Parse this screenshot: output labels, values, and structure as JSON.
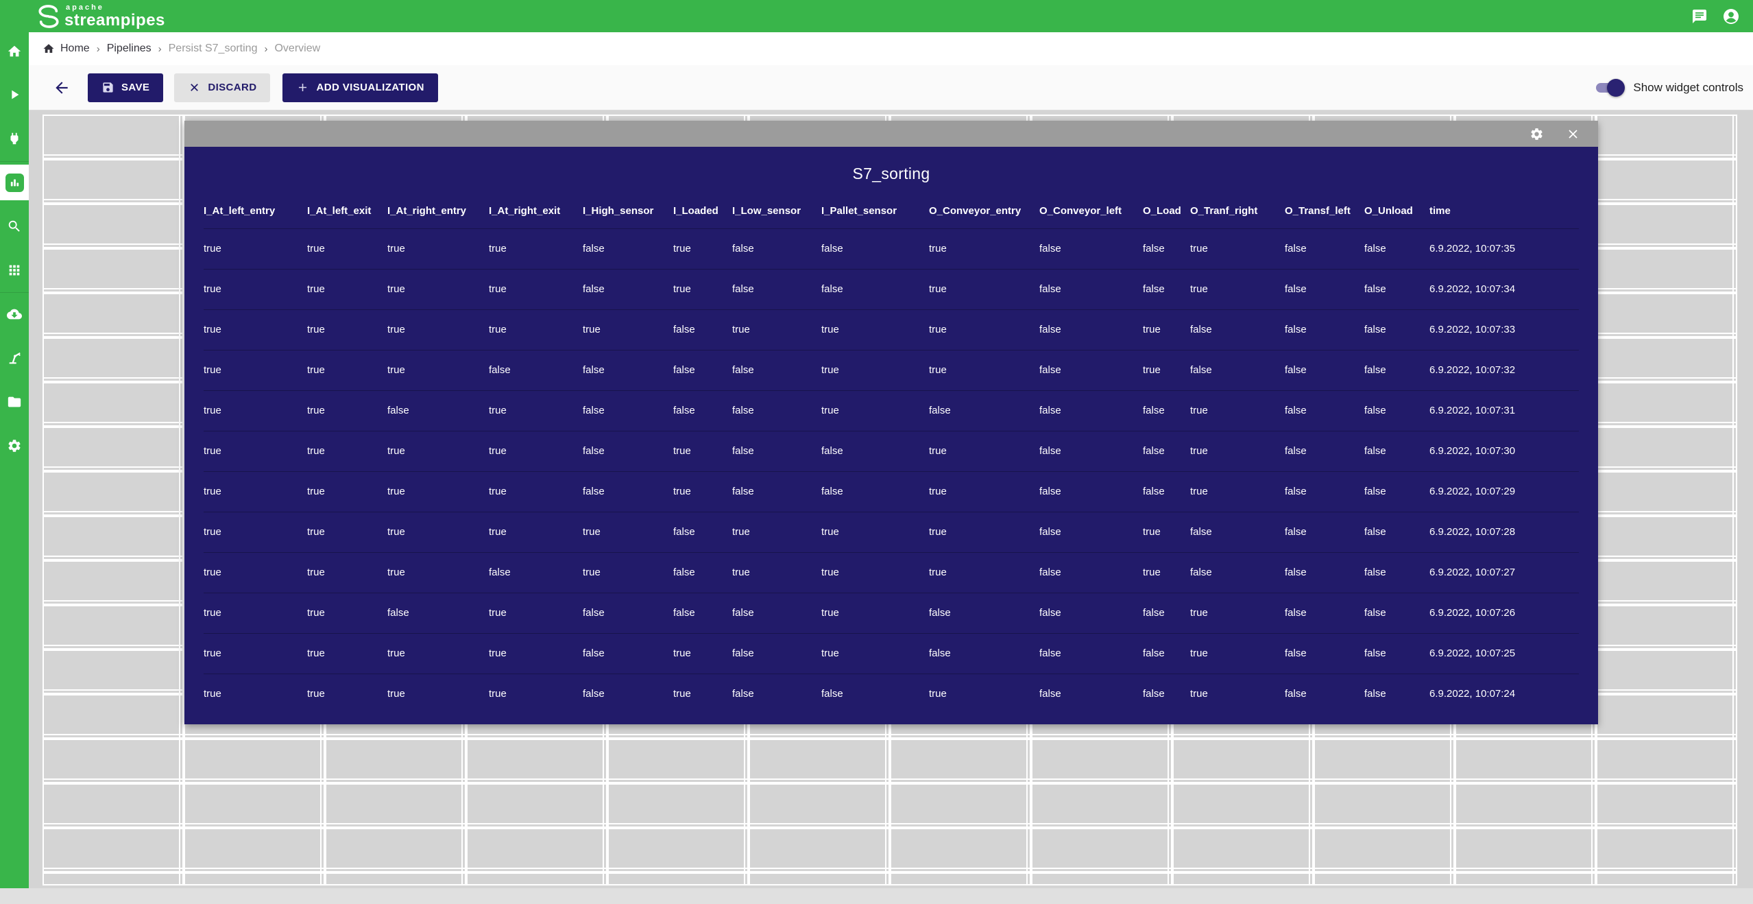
{
  "topbar": {
    "logo_apache": "apache",
    "logo_main": "streampipes",
    "icons": [
      "messages-icon",
      "account-icon"
    ]
  },
  "breadcrumb": {
    "separator": "›",
    "items": [
      {
        "label": "Home"
      },
      {
        "label": "Pipelines"
      },
      {
        "label": "Persist S7_sorting"
      },
      {
        "label": "Overview"
      }
    ]
  },
  "toolbar": {
    "save_label": "SAVE",
    "discard_label": "DISCARD",
    "add_visualization_label": "ADD VISUALIZATION",
    "toggle_label": "Show widget controls",
    "toggle_on": true
  },
  "sidebar": {
    "items": [
      "home",
      "pipelines",
      "connect",
      "dashboard",
      "data-explorer",
      "apps",
      "install-elements",
      "pipeline-element-editor",
      "files",
      "settings"
    ],
    "active_item": "dashboard"
  },
  "widget": {
    "title": "S7_sorting",
    "header_icons": [
      "settings-icon",
      "close-icon"
    ],
    "table": {
      "columns": [
        "I_At_left_entry",
        "I_At_left_exit",
        "I_At_right_entry",
        "I_At_right_exit",
        "I_High_sensor",
        "I_Loaded",
        "I_Low_sensor",
        "I_Pallet_sensor",
        "O_Conveyor_entry",
        "O_Conveyor_left",
        "O_Load",
        "O_Tranf_right",
        "O_Transf_left",
        "O_Unload",
        "time"
      ],
      "rows": [
        [
          "true",
          "true",
          "true",
          "true",
          "false",
          "true",
          "false",
          "false",
          "true",
          "false",
          "false",
          "true",
          "false",
          "false",
          "6.9.2022, 10:07:35"
        ],
        [
          "true",
          "true",
          "true",
          "true",
          "false",
          "true",
          "false",
          "false",
          "true",
          "false",
          "false",
          "true",
          "false",
          "false",
          "6.9.2022, 10:07:34"
        ],
        [
          "true",
          "true",
          "true",
          "true",
          "true",
          "false",
          "true",
          "true",
          "true",
          "false",
          "true",
          "false",
          "false",
          "false",
          "6.9.2022, 10:07:33"
        ],
        [
          "true",
          "true",
          "true",
          "false",
          "false",
          "false",
          "false",
          "true",
          "true",
          "false",
          "true",
          "false",
          "false",
          "false",
          "6.9.2022, 10:07:32"
        ],
        [
          "true",
          "true",
          "false",
          "true",
          "false",
          "false",
          "false",
          "true",
          "false",
          "false",
          "false",
          "true",
          "false",
          "false",
          "6.9.2022, 10:07:31"
        ],
        [
          "true",
          "true",
          "true",
          "true",
          "false",
          "true",
          "false",
          "false",
          "true",
          "false",
          "false",
          "true",
          "false",
          "false",
          "6.9.2022, 10:07:30"
        ],
        [
          "true",
          "true",
          "true",
          "true",
          "false",
          "true",
          "false",
          "false",
          "true",
          "false",
          "false",
          "true",
          "false",
          "false",
          "6.9.2022, 10:07:29"
        ],
        [
          "true",
          "true",
          "true",
          "true",
          "true",
          "false",
          "true",
          "true",
          "true",
          "false",
          "true",
          "false",
          "false",
          "false",
          "6.9.2022, 10:07:28"
        ],
        [
          "true",
          "true",
          "true",
          "false",
          "true",
          "false",
          "true",
          "true",
          "true",
          "false",
          "true",
          "false",
          "false",
          "false",
          "6.9.2022, 10:07:27"
        ],
        [
          "true",
          "true",
          "false",
          "true",
          "false",
          "false",
          "false",
          "true",
          "false",
          "false",
          "false",
          "true",
          "false",
          "false",
          "6.9.2022, 10:07:26"
        ],
        [
          "true",
          "true",
          "true",
          "true",
          "false",
          "true",
          "false",
          "true",
          "false",
          "false",
          "false",
          "true",
          "false",
          "false",
          "6.9.2022, 10:07:25"
        ],
        [
          "true",
          "true",
          "true",
          "true",
          "false",
          "true",
          "false",
          "false",
          "true",
          "false",
          "false",
          "true",
          "false",
          "false",
          "6.9.2022, 10:07:24"
        ]
      ]
    }
  },
  "colors": {
    "brand_green": "#39b54a",
    "brand_navy": "#221b6a",
    "widget_header_gray": "#9c9c9c",
    "grid_gray": "#d4d4d4"
  }
}
